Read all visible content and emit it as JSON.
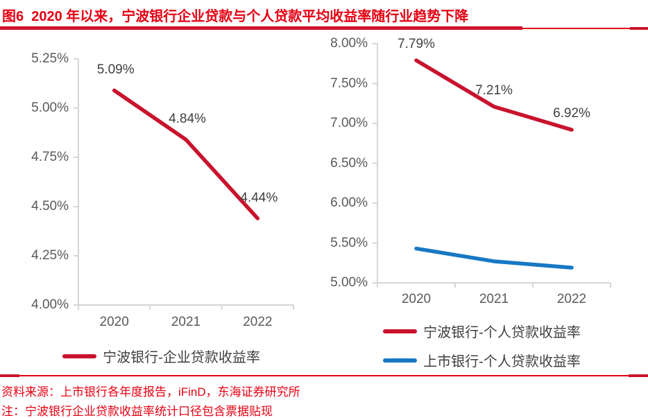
{
  "title": "图6  2020 年以来，宁波银行企业贷款与个人贷款平均收益率随行业趋势下降",
  "source_line": "资料来源：上市银行各年度报告，iFinD，东海证券研究所",
  "note_line": "注：宁波银行企业贷款收益率统计口径包含票据贴现",
  "colors": {
    "title_red": "#E60012",
    "divider_dark_red": "#C9132D",
    "line_red": "#C9132D",
    "line_blue": "#1778C4",
    "axis_gray": "#D6D6D6",
    "tick_label_gray": "#595959",
    "data_label_gray": "#3F3F3F"
  },
  "chart_data": [
    {
      "type": "line",
      "title": "",
      "categories": [
        "2020",
        "2021",
        "2022"
      ],
      "series": [
        {
          "name": "宁波银行-企业贷款收益率",
          "color": "#C9132D",
          "values": [
            5.09,
            4.84,
            4.44
          ],
          "labels": [
            "5.09%",
            "4.84%",
            "4.44%"
          ]
        }
      ],
      "ylim": [
        4.0,
        5.25
      ],
      "y_ticks": [
        "5.25%",
        "5.00%",
        "4.75%",
        "4.50%",
        "4.25%",
        "4.00%"
      ],
      "grid": "off",
      "legend_position": "bottom"
    },
    {
      "type": "line",
      "title": "",
      "categories": [
        "2020",
        "2021",
        "2022"
      ],
      "series": [
        {
          "name": "宁波银行-个人贷款收益率",
          "color": "#C9132D",
          "values": [
            7.79,
            7.21,
            6.92
          ],
          "labels": [
            "7.79%",
            "7.21%",
            "6.92%"
          ]
        },
        {
          "name": "上市银行-个人贷款收益率",
          "color": "#1778C4",
          "values": [
            5.43,
            5.27,
            5.19
          ],
          "labels": []
        }
      ],
      "ylim": [
        5.0,
        8.0
      ],
      "y_ticks": [
        "8.00%",
        "7.50%",
        "7.00%",
        "6.50%",
        "6.00%",
        "5.50%",
        "5.00%"
      ],
      "grid": "off",
      "legend_position": "bottom"
    }
  ]
}
